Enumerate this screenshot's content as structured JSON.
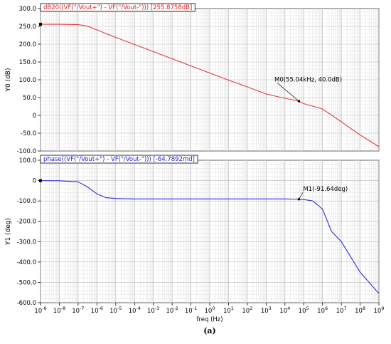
{
  "chart_data": [
    {
      "type": "line",
      "title": "dB20((VF(\"/Vout+\") - VF(\"/Vout-\"))) [255.8758dB]",
      "ylabel": "Y0 (dB)",
      "xlabel": "",
      "xscale": "log",
      "xlim": [
        1e-09,
        1000000000.0
      ],
      "ylim": [
        -100,
        300
      ],
      "yticks": [
        "300.0",
        "250.0",
        "200.0",
        "150.0",
        "100.0",
        "50.0",
        "0",
        "-50.0",
        "-100.0"
      ],
      "grid": true,
      "color": "#e23b3b",
      "series": [
        {
          "x": [
            1e-09,
            1e-08,
            1e-07,
            3e-07,
            1e-06,
            1e-05,
            0.0001,
            0.001,
            0.01,
            0.1,
            1,
            10,
            100,
            1000,
            10000.0,
            55040.0,
            100000.0,
            1000000.0,
            10000000.0,
            100000000.0,
            1000000000.0
          ],
          "values": [
            255.9,
            255.8,
            255.0,
            251.0,
            240.0,
            219.0,
            199.0,
            179.0,
            159.0,
            139.0,
            119.0,
            99.0,
            80.0,
            60.0,
            48.0,
            40.0,
            33.0,
            18.0,
            -18.0,
            -55.0,
            -88.0
          ]
        }
      ],
      "markers": [
        {
          "label": "M0(55.04kHz, 40.0dB)",
          "x": 55040,
          "y": 40.0
        }
      ]
    },
    {
      "type": "line",
      "title": "phase((VF(\"/Vout+\") - VF(\"/Vout-\"))) [-64.7892md]",
      "ylabel": "Y1 (deg)",
      "xlabel": "freq (Hz)",
      "xscale": "log",
      "xlim": [
        1e-09,
        1000000000.0
      ],
      "ylim": [
        -600,
        100
      ],
      "yticks": [
        "100.0",
        "0",
        "-100.0",
        "-200.0",
        "-300.0",
        "-400.0",
        "-500.0",
        "-600.0"
      ],
      "xticks": [
        "-9",
        "-8",
        "-7",
        "-6",
        "-5",
        "-4",
        "-3",
        "-2",
        "-1",
        "0",
        "1",
        "2",
        "3",
        "4",
        "5",
        "6",
        "7",
        "8",
        "9"
      ],
      "grid": true,
      "color": "#2a2ae0",
      "series": [
        {
          "x": [
            1e-09,
            1e-08,
            1e-07,
            3e-07,
            1e-06,
            3e-06,
            1e-05,
            0.0001,
            0.001,
            10000.0,
            50000.0,
            100000.0,
            300000.0,
            1000000.0,
            3000000.0,
            10000000.0,
            100000000.0,
            1000000000.0
          ],
          "values": [
            -0.06,
            -1.0,
            -6.0,
            -30.0,
            -65.0,
            -84.0,
            -88.0,
            -90.0,
            -90.0,
            -90.0,
            -91.6,
            -93.0,
            -100.0,
            -140.0,
            -250.0,
            -300.0,
            -450.0,
            -555.0
          ]
        }
      ],
      "markers": [
        {
          "label": "M1(-91.64deg)",
          "x": 55040,
          "y": -91.64
        }
      ]
    }
  ],
  "caption": "(a)",
  "x_tick_base": "10"
}
